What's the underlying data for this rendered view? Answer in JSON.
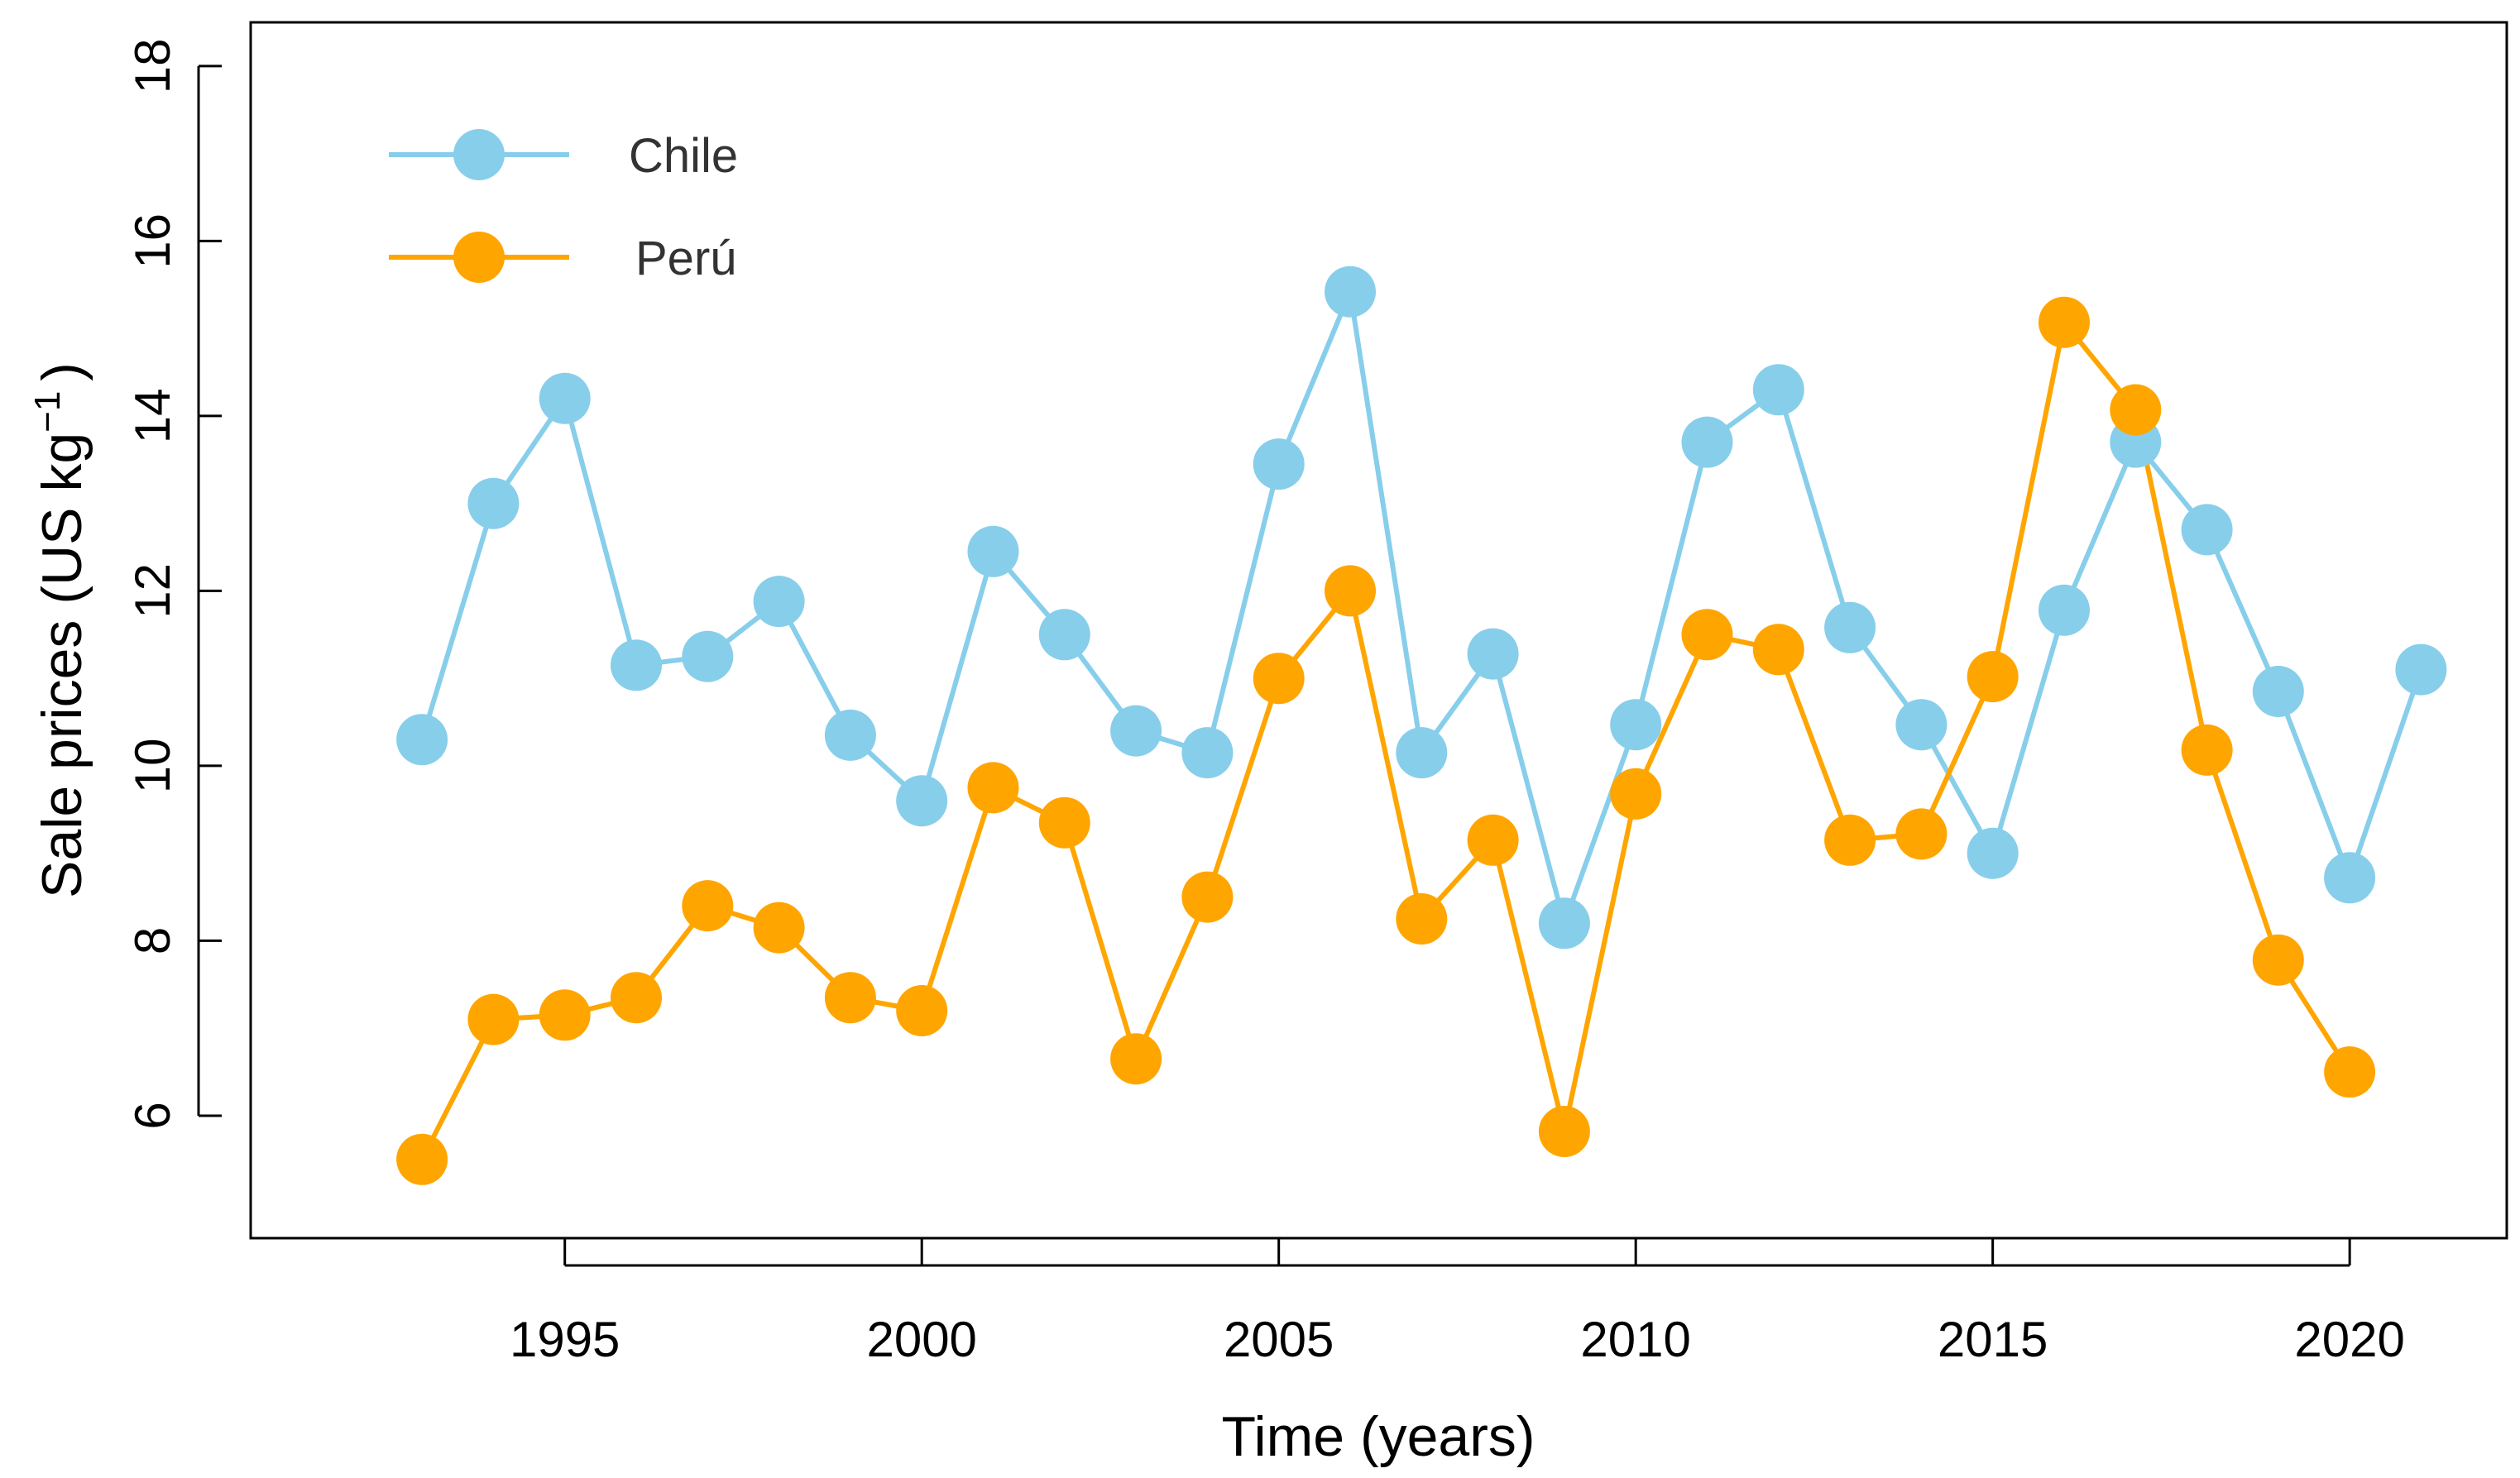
{
  "chart_data": {
    "type": "line",
    "title": "",
    "xlabel": "Time (years)",
    "ylabel": "Sale prices (US kg",
    "ylabel_superscript": "−1",
    "ylabel_suffix": ")",
    "xlim": [
      1990.6,
      2022.2
    ],
    "ylim": [
      4.6,
      18.5
    ],
    "xticks": [
      1995,
      2000,
      2005,
      2010,
      2015,
      2020
    ],
    "yticks": [
      6,
      8,
      10,
      12,
      14,
      16,
      18
    ],
    "legend_position": "top-left",
    "series": [
      {
        "name": "Chile",
        "color": "#87CEEB",
        "x": [
          1993,
          1994,
          1995,
          1996,
          1997,
          1998,
          1999,
          2000,
          2001,
          2002,
          2003,
          2004,
          2005,
          2006,
          2007,
          2008,
          2009,
          2010,
          2011,
          2012,
          2013,
          2014,
          2015,
          2016,
          2017,
          2018,
          2019,
          2020,
          2021
        ],
        "values": [
          10.3,
          13.0,
          14.2,
          11.15,
          11.25,
          11.88,
          10.35,
          9.6,
          12.45,
          11.5,
          10.4,
          10.15,
          13.45,
          15.42,
          10.15,
          11.28,
          8.2,
          10.47,
          13.7,
          14.3,
          11.58,
          10.47,
          9.0,
          11.78,
          13.7,
          12.7,
          10.85,
          8.72,
          11.1
        ]
      },
      {
        "name": "Perú",
        "color": "#FFA500",
        "x": [
          1993,
          1994,
          1995,
          1996,
          1997,
          1998,
          1999,
          2000,
          2001,
          2002,
          2003,
          2004,
          2005,
          2006,
          2007,
          2008,
          2009,
          2010,
          2011,
          2012,
          2013,
          2014,
          2015,
          2016,
          2017,
          2018,
          2019,
          2020
        ],
        "values": [
          5.5,
          7.1,
          7.15,
          7.35,
          8.4,
          8.15,
          7.35,
          7.2,
          9.75,
          9.35,
          6.65,
          8.5,
          11.0,
          12.0,
          8.25,
          9.15,
          5.82,
          9.68,
          11.5,
          11.33,
          9.15,
          9.22,
          11.02,
          15.07,
          14.07,
          10.18,
          7.78,
          6.5
        ]
      }
    ]
  }
}
